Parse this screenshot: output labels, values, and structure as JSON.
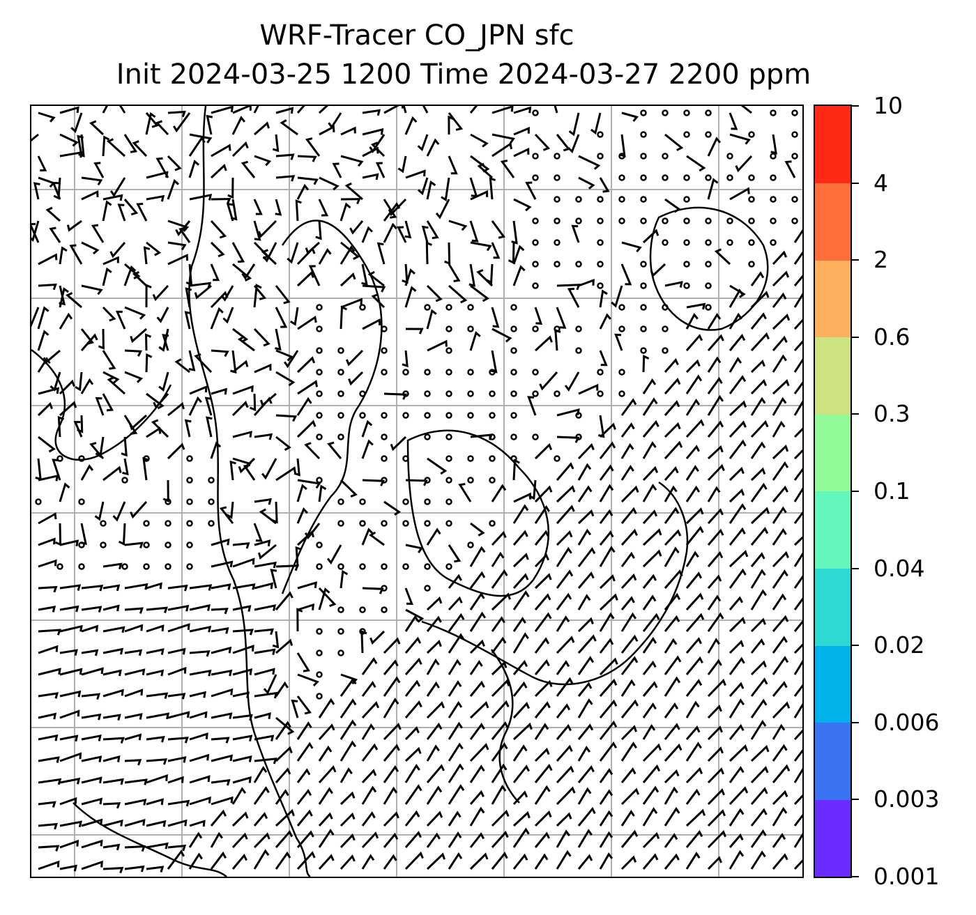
{
  "title": {
    "line1": "WRF-Tracer CO_JPN sfc",
    "line2": "Init 2024-03-25 1200 Time 2024-03-27 2200 ppm"
  },
  "colorbar": {
    "levels": [
      "0.001",
      "0.003",
      "0.006",
      "0.02",
      "0.04",
      "0.1",
      "0.3",
      "0.6",
      "2",
      "4",
      "10"
    ],
    "colors": [
      "#6a2cff",
      "#3b74f2",
      "#00b1ea",
      "#2ed9d4",
      "#63f7bc",
      "#93fa9a",
      "#cde381",
      "#fdb15f",
      "#fe6e3a",
      "#ff2a16"
    ]
  },
  "map": {
    "gridlines": true,
    "grid_color": "#b0b0b0",
    "overlays": [
      "coastlines",
      "wind-barbs"
    ]
  }
}
